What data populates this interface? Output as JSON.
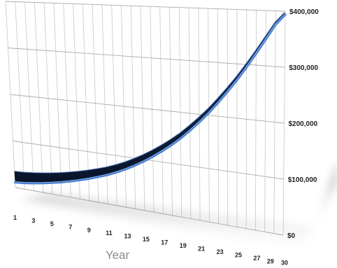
{
  "chart_data": {
    "type": "line",
    "xlabel": "Year",
    "ylabel": "",
    "x_tick_labels": [
      "1",
      "3",
      "5",
      "7",
      "9",
      "11",
      "13",
      "15",
      "17",
      "19",
      "21",
      "23",
      "25",
      "27",
      "29",
      "30"
    ],
    "y_tick_labels": [
      "$0",
      "$100,000",
      "$200,000",
      "$300,000",
      "$400,000"
    ],
    "ylim": [
      0,
      400000
    ],
    "xlim": [
      1,
      30
    ],
    "grid": true,
    "legend": "none",
    "series": [
      {
        "color": "#4a7fd0",
        "x": [
          1,
          2,
          3,
          4,
          5,
          6,
          7,
          8,
          9,
          10,
          11,
          12,
          13,
          14,
          15,
          16,
          17,
          18,
          19,
          20,
          21,
          22,
          23,
          24,
          25,
          26,
          27,
          28,
          29,
          30
        ],
        "values": [
          11000,
          13000,
          16000,
          19500,
          23500,
          28000,
          33000,
          38500,
          44500,
          51000,
          58000,
          66000,
          75000,
          85000,
          96000,
          108000,
          121000,
          135000,
          150000,
          167000,
          185000,
          204000,
          225000,
          247000,
          270000,
          295000,
          321000,
          348000,
          375000,
          394000
        ]
      }
    ],
    "colors": {
      "line_front": "#4a7fd0",
      "line_top": "#2f5aa6",
      "line_dark": "#0d1f3f",
      "grid": "#c8c8c8"
    }
  }
}
